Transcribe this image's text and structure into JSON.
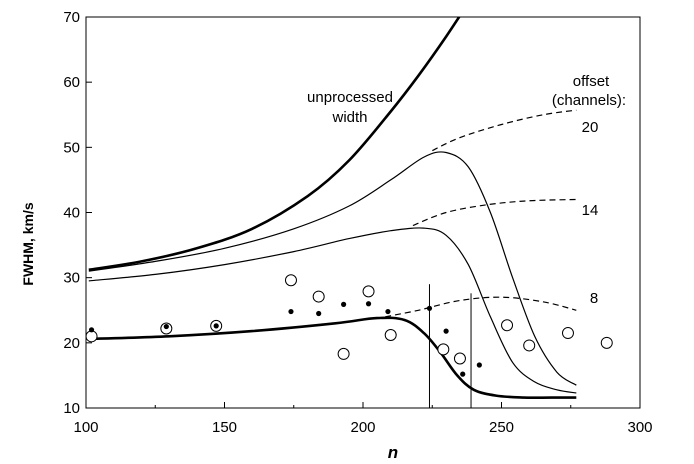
{
  "chart_data": {
    "type": "line",
    "xlabel": "n",
    "ylabel": "FWHM, km/s",
    "xlim": [
      100,
      300
    ],
    "ylim": [
      10,
      70
    ],
    "xticks": [
      100,
      150,
      200,
      250,
      300
    ],
    "yticks": [
      10,
      20,
      30,
      40,
      50,
      60,
      70
    ],
    "grid": false,
    "legend": "none",
    "series": [
      {
        "style": "thick-solid",
        "x": [
          101,
          120,
          140,
          160,
          180,
          195,
          210,
          220,
          230,
          237
        ],
        "y": [
          31.2,
          32.5,
          34.5,
          37.5,
          42.5,
          48,
          55.5,
          61,
          67,
          71.5
        ]
      },
      {
        "style": "solid",
        "x": [
          101,
          125,
          150,
          175,
          195,
          210,
          222,
          230,
          238,
          246,
          254,
          262,
          270,
          277
        ],
        "y": [
          29.5,
          30.5,
          32,
          34,
          36,
          37.2,
          37.6,
          36.5,
          32,
          24,
          17,
          14,
          12.8,
          12.3
        ]
      },
      {
        "style": "solid",
        "x": [
          101,
          125,
          150,
          175,
          195,
          210,
          222,
          230,
          238,
          246,
          254,
          262,
          270,
          277
        ],
        "y": [
          31,
          32.5,
          34.5,
          37.5,
          41,
          45,
          48.5,
          49.2,
          47,
          40,
          30,
          21,
          15.5,
          13.5
        ]
      },
      {
        "style": "thick-solid",
        "x": [
          101,
          130,
          160,
          190,
          205,
          215,
          222,
          228,
          234,
          240,
          248,
          258,
          268,
          277
        ],
        "y": [
          20.6,
          21.0,
          21.8,
          23.0,
          23.8,
          23.5,
          21.5,
          18.5,
          15,
          12.8,
          11.9,
          11.6,
          11.6,
          11.6
        ]
      },
      {
        "style": "dashed",
        "x": [
          208,
          220,
          235,
          250,
          265,
          277
        ],
        "y": [
          24,
          25,
          26.5,
          27,
          26.3,
          25
        ]
      },
      {
        "style": "dashed",
        "x": [
          218,
          230,
          245,
          260,
          277
        ],
        "y": [
          38,
          40,
          41.2,
          41.8,
          42
        ]
      },
      {
        "style": "dashed",
        "x": [
          225,
          235,
          250,
          265,
          277
        ],
        "y": [
          49.5,
          51.5,
          53.5,
          55,
          55.7
        ]
      }
    ],
    "open_points": {
      "x": [
        102,
        129,
        147,
        174,
        184,
        193,
        202,
        210,
        229,
        235,
        252,
        260,
        274,
        288
      ],
      "y": [
        21.0,
        22.2,
        22.6,
        29.6,
        27.1,
        18.3,
        27.9,
        21.2,
        19.0,
        17.6,
        22.7,
        19.6,
        21.5,
        20.0
      ]
    },
    "filled_points": {
      "x": [
        102,
        129,
        147,
        174,
        184,
        193,
        202,
        209,
        224,
        230,
        236,
        242
      ],
      "y": [
        22,
        22.5,
        22.6,
        24.8,
        24.5,
        25.9,
        26.0,
        24.8,
        25.3,
        21.8,
        15.2,
        16.6
      ]
    },
    "vertical_lines": [
      {
        "x": 224,
        "y": [
          10,
          29
        ]
      },
      {
        "x": 239,
        "y": [
          10,
          27.6
        ]
      }
    ],
    "annotations": {
      "unprocessed_line1": "unprocessed",
      "unprocessed_line2": "width",
      "offset_line1": "offset",
      "offset_line2": "(channels):",
      "offset_20": "20",
      "offset_14": "14",
      "offset_8": "8"
    }
  }
}
